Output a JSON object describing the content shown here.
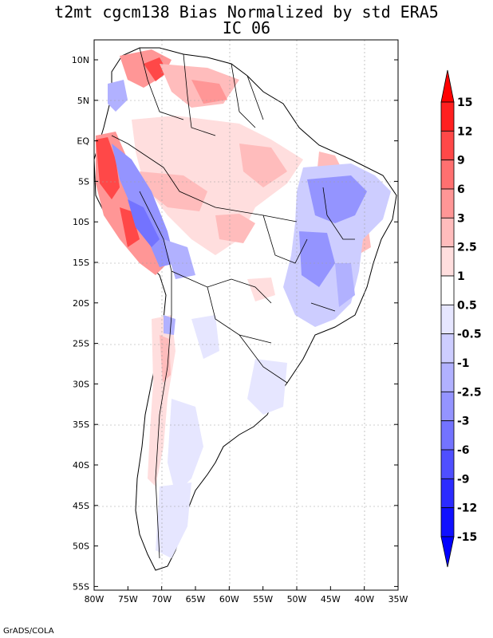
{
  "title": {
    "line1": "t2mt cgcm138 Bias Normalized by std ERA5",
    "line2": "IC 06"
  },
  "map": {
    "lon_labels": [
      "80W",
      "75W",
      "70W",
      "65W",
      "60W",
      "55W",
      "50W",
      "45W",
      "40W",
      "35W"
    ],
    "lat_labels": [
      "10N",
      "5N",
      "EQ",
      "5S",
      "10S",
      "15S",
      "20S",
      "25S",
      "30S",
      "35S",
      "40S",
      "45S",
      "50S",
      "55S"
    ]
  },
  "colorbar": {
    "labels": [
      "15",
      "12",
      "9",
      "6",
      "3",
      "2.5",
      "1",
      "0.5",
      "-0.5",
      "-1",
      "-2.5",
      "-3",
      "-6",
      "-9",
      "-12",
      "-15"
    ],
    "colors": [
      "#ff2020",
      "#ff4848",
      "#ff7070",
      "#ff9696",
      "#ffbcbc",
      "#ffdede",
      "#ffffff",
      "#e6e6ff",
      "#cdcdff",
      "#b1b1ff",
      "#9494ff",
      "#7373ff",
      "#4f4fff",
      "#2b2bff",
      "#1010ff"
    ],
    "top_arrow_color": "#ff0000",
    "bottom_arrow_color": "#0000ff"
  },
  "footer": "GrADS/COLA"
}
